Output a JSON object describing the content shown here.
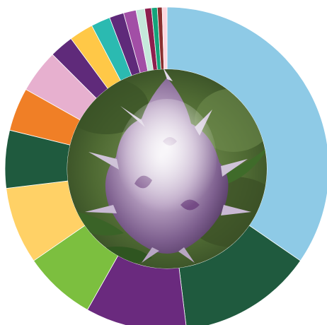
{
  "chart_data": {
    "type": "pie",
    "variant": "donut",
    "title": "",
    "legend": "none",
    "center_image": "cannabis-bud-photo",
    "slices": [
      {
        "value": 36.0,
        "color": "#8ecae6"
      },
      {
        "value": 14.0,
        "color": "#1f5a3e"
      },
      {
        "value": 10.5,
        "color": "#6a2a7e"
      },
      {
        "value": 7.5,
        "color": "#7cbf3f"
      },
      {
        "value": 8.0,
        "color": "#ffd166"
      },
      {
        "value": 6.0,
        "color": "#1f5a3e"
      },
      {
        "value": 4.5,
        "color": "#f07f26"
      },
      {
        "value": 4.5,
        "color": "#e7b0cf"
      },
      {
        "value": 2.5,
        "color": "#5f2a7a"
      },
      {
        "value": 2.5,
        "color": "#ffc847"
      },
      {
        "value": 2.0,
        "color": "#2bbab1"
      },
      {
        "value": 1.5,
        "color": "#5f2a7a"
      },
      {
        "value": 1.3,
        "color": "#a24ea6"
      },
      {
        "value": 0.9,
        "color": "#c5e8db"
      },
      {
        "value": 0.7,
        "color": "#8e1f4e"
      },
      {
        "value": 0.6,
        "color": "#14a47a"
      },
      {
        "value": 0.5,
        "color": "#8a2f2f"
      },
      {
        "value": 0.5,
        "color": "#ffd6df"
      }
    ]
  }
}
